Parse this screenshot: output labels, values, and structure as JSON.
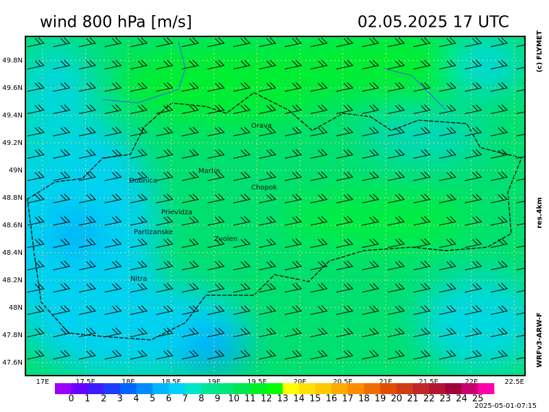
{
  "header": {
    "title": "wind 800 hPa [m/s]",
    "datetime": "02.05.2025   17 UTC"
  },
  "side_labels": {
    "copyright": "(c) FLYMET",
    "resolution": "res.4km",
    "model": "WRFv3-ARW-F"
  },
  "axes": {
    "lat_labels": [
      "49.8N",
      "49.6N",
      "49.4N",
      "49.2N",
      "49N",
      "48.8N",
      "48.6N",
      "48.4N",
      "48.2N",
      "48N",
      "47.8N",
      "47.6N"
    ],
    "lon_labels": [
      "17E",
      "17.5E",
      "18E",
      "18.5E",
      "19E",
      "19.5E",
      "20E",
      "20.5E",
      "21E",
      "21.5E",
      "22E",
      "22.5E"
    ]
  },
  "cities": [
    "Orava",
    "Martin",
    "Dubnica",
    "Chopok",
    "Prievidza",
    "Partizanske",
    "Zvolen",
    "Nitra"
  ],
  "legend": {
    "labels": [
      0,
      1,
      2,
      3,
      4,
      5,
      6,
      7,
      8,
      9,
      10,
      11,
      12,
      13,
      14,
      15,
      16,
      17,
      18,
      19,
      20,
      21,
      22,
      23,
      24,
      25
    ],
    "colors": [
      "#9a00ff",
      "#6a00ff",
      "#3c1cff",
      "#1e3cff",
      "#0064ff",
      "#008cff",
      "#00b4ff",
      "#00d2ff",
      "#00e6c8",
      "#00e696",
      "#00e678",
      "#00e650",
      "#00f028",
      "#00ff00",
      "#ffff00",
      "#ffe100",
      "#ffc800",
      "#ffaa00",
      "#ff8c00",
      "#f06e00",
      "#e05000",
      "#d03c14",
      "#c02828",
      "#b41432",
      "#a0003c",
      "#c8006e",
      "#ff00aa"
    ]
  },
  "footer": {
    "timestamp": "2025-05-01-07:15"
  }
}
